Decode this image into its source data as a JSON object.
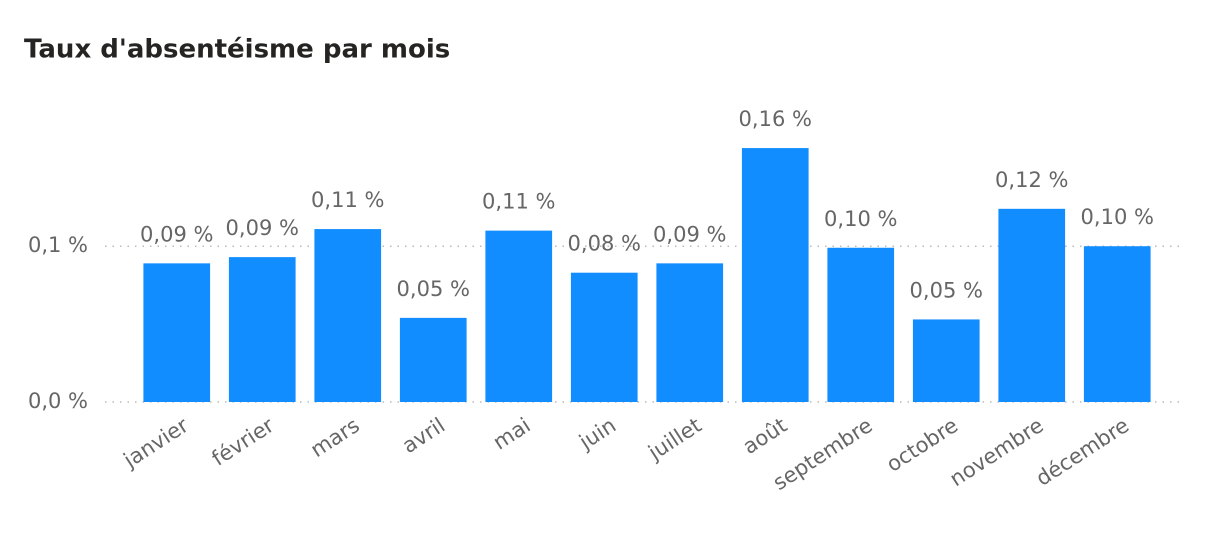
{
  "chart_data": {
    "type": "bar",
    "title": "Taux d'absentéisme par mois",
    "categories": [
      "janvier",
      "février",
      "mars",
      "avril",
      "mai",
      "juin",
      "juillet",
      "août",
      "septembre",
      "octobre",
      "novembre",
      "décembre"
    ],
    "values": [
      0.089,
      0.093,
      0.111,
      0.054,
      0.11,
      0.083,
      0.089,
      0.163,
      0.099,
      0.053,
      0.124,
      0.1
    ],
    "value_labels": [
      "0,09 %",
      "0,09 %",
      "0,11 %",
      "0,05 %",
      "0,11 %",
      "0,08 %",
      "0,09 %",
      "0,16 %",
      "0,10 %",
      "0,05 %",
      "0,12 %",
      "0,10 %"
    ],
    "color": "#118dff",
    "ylim": [
      0,
      0.19
    ],
    "yticks": [
      {
        "value": 0,
        "label": "0,0 %"
      },
      {
        "value": 0.1,
        "label": "0,1 %"
      }
    ],
    "grid": true
  }
}
